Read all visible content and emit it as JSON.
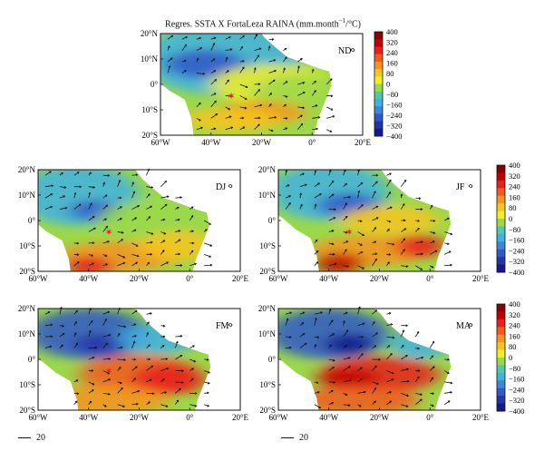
{
  "figure": {
    "title_prefix": "Regres. SSTA X FortaLeza RAINA (mm.month",
    "title_sup": "−1",
    "title_suffix": "/°C)"
  },
  "colorbar": {
    "ticks": [
      "400",
      "320",
      "240",
      "160",
      "80",
      "0",
      "−80",
      "−160",
      "−240",
      "−320",
      "−400"
    ],
    "colors": [
      "#8b0000",
      "#c00000",
      "#e8201a",
      "#f25a1f",
      "#f7931e",
      "#f7c61c",
      "#f2ee25",
      "#9bd84a",
      "#4fc9a8",
      "#3fb1e2",
      "#3d86d6",
      "#2f58c8",
      "#2333a8",
      "#15188c"
    ]
  },
  "axes": {
    "x_ticks": [
      "60°W",
      "40°W",
      "20°W",
      "0°",
      "20°E"
    ],
    "y_ticks": [
      "20°N",
      "10°N",
      "0°",
      "10°S",
      "20°S"
    ]
  },
  "panels": [
    {
      "id": "nd",
      "label": "ND"
    },
    {
      "id": "dj",
      "label": "DJ"
    },
    {
      "id": "jf",
      "label": "JF"
    },
    {
      "id": "fm",
      "label": "FM"
    },
    {
      "id": "ma",
      "label": "MA"
    }
  ],
  "vector_scale": {
    "label": "20"
  },
  "marker": {
    "name": "Fortaleza",
    "color": "#e8201a"
  }
}
